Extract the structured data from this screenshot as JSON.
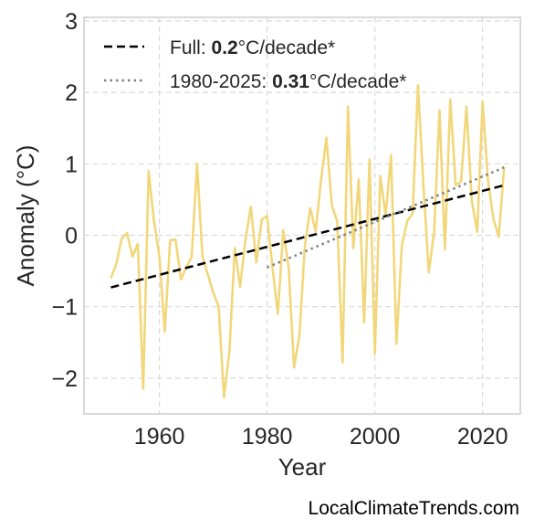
{
  "watermark": "LocalClimateTrends.com",
  "legend": {
    "full_prefix": "Full: ",
    "full_value": "0.2",
    "full_suffix": "°C/decade*",
    "recent_prefix": "1980-2025: ",
    "recent_value": "0.31",
    "recent_suffix": "°C/decade*"
  },
  "chart_data": {
    "type": "line",
    "xlabel": "Year",
    "ylabel": "Anomaly (°C)",
    "xlim": [
      1946,
      2027
    ],
    "ylim": [
      -2.5,
      3.05
    ],
    "xticks": [
      1960,
      1980,
      2000,
      2020
    ],
    "yticks": [
      -2,
      -1,
      0,
      1,
      2,
      3
    ],
    "ytick_labels": [
      "−2",
      "−1",
      "0",
      "1",
      "2",
      "3"
    ],
    "grid": true,
    "legend_position": "top-left",
    "series": [
      {
        "x": [
          1951,
          1952,
          1953,
          1954,
          1955,
          1956,
          1957,
          1958,
          1959,
          1960,
          1961,
          1962,
          1963,
          1964,
          1965,
          1966,
          1967,
          1968,
          1969,
          1970,
          1971,
          1972,
          1973,
          1974,
          1975,
          1976,
          1977,
          1978,
          1979,
          1980,
          1981,
          1982,
          1983,
          1984,
          1985,
          1986,
          1987,
          1988,
          1989,
          1990,
          1991,
          1992,
          1993,
          1994,
          1995,
          1996,
          1997,
          1998,
          1999,
          2000,
          2001,
          2002,
          2003,
          2004,
          2005,
          2006,
          2007,
          2008,
          2009,
          2010,
          2011,
          2012,
          2013,
          2014,
          2015,
          2016,
          2017,
          2018,
          2019,
          2020,
          2021,
          2022,
          2023,
          2024
        ],
        "values": [
          -0.6,
          -0.4,
          -0.05,
          0.03,
          -0.3,
          -0.12,
          -2.15,
          0.9,
          0.2,
          -0.3,
          -1.35,
          -0.07,
          -0.06,
          -0.62,
          -0.45,
          -0.3,
          1.0,
          -0.3,
          -0.55,
          -0.8,
          -1.0,
          -2.27,
          -1.62,
          -0.18,
          -0.72,
          -0.05,
          0.4,
          -0.38,
          0.22,
          0.27,
          -0.45,
          -1.1,
          0.07,
          -0.45,
          -1.85,
          -1.4,
          -0.15,
          0.38,
          0.05,
          0.77,
          1.37,
          0.42,
          0.2,
          -1.78,
          1.8,
          -0.18,
          0.78,
          -1.22,
          1.06,
          -1.66,
          0.83,
          0.28,
          1.12,
          -1.52,
          -0.15,
          0.2,
          0.3,
          2.1,
          0.72,
          -0.52,
          0.05,
          1.75,
          -0.2,
          1.9,
          0.7,
          0.75,
          1.8,
          0.48,
          0.05,
          1.87,
          0.77,
          0.23,
          -0.02,
          0.95
        ],
        "color": "#f2d77a"
      },
      {
        "name": "Full",
        "x": [
          1951,
          2024
        ],
        "values": [
          -0.73,
          0.7
        ],
        "color": "#000000",
        "style": "dashed"
      },
      {
        "name": "1980-2025",
        "x": [
          1980,
          2024
        ],
        "values": [
          -0.45,
          0.95
        ],
        "color": "#808080",
        "style": "dotted"
      }
    ]
  }
}
